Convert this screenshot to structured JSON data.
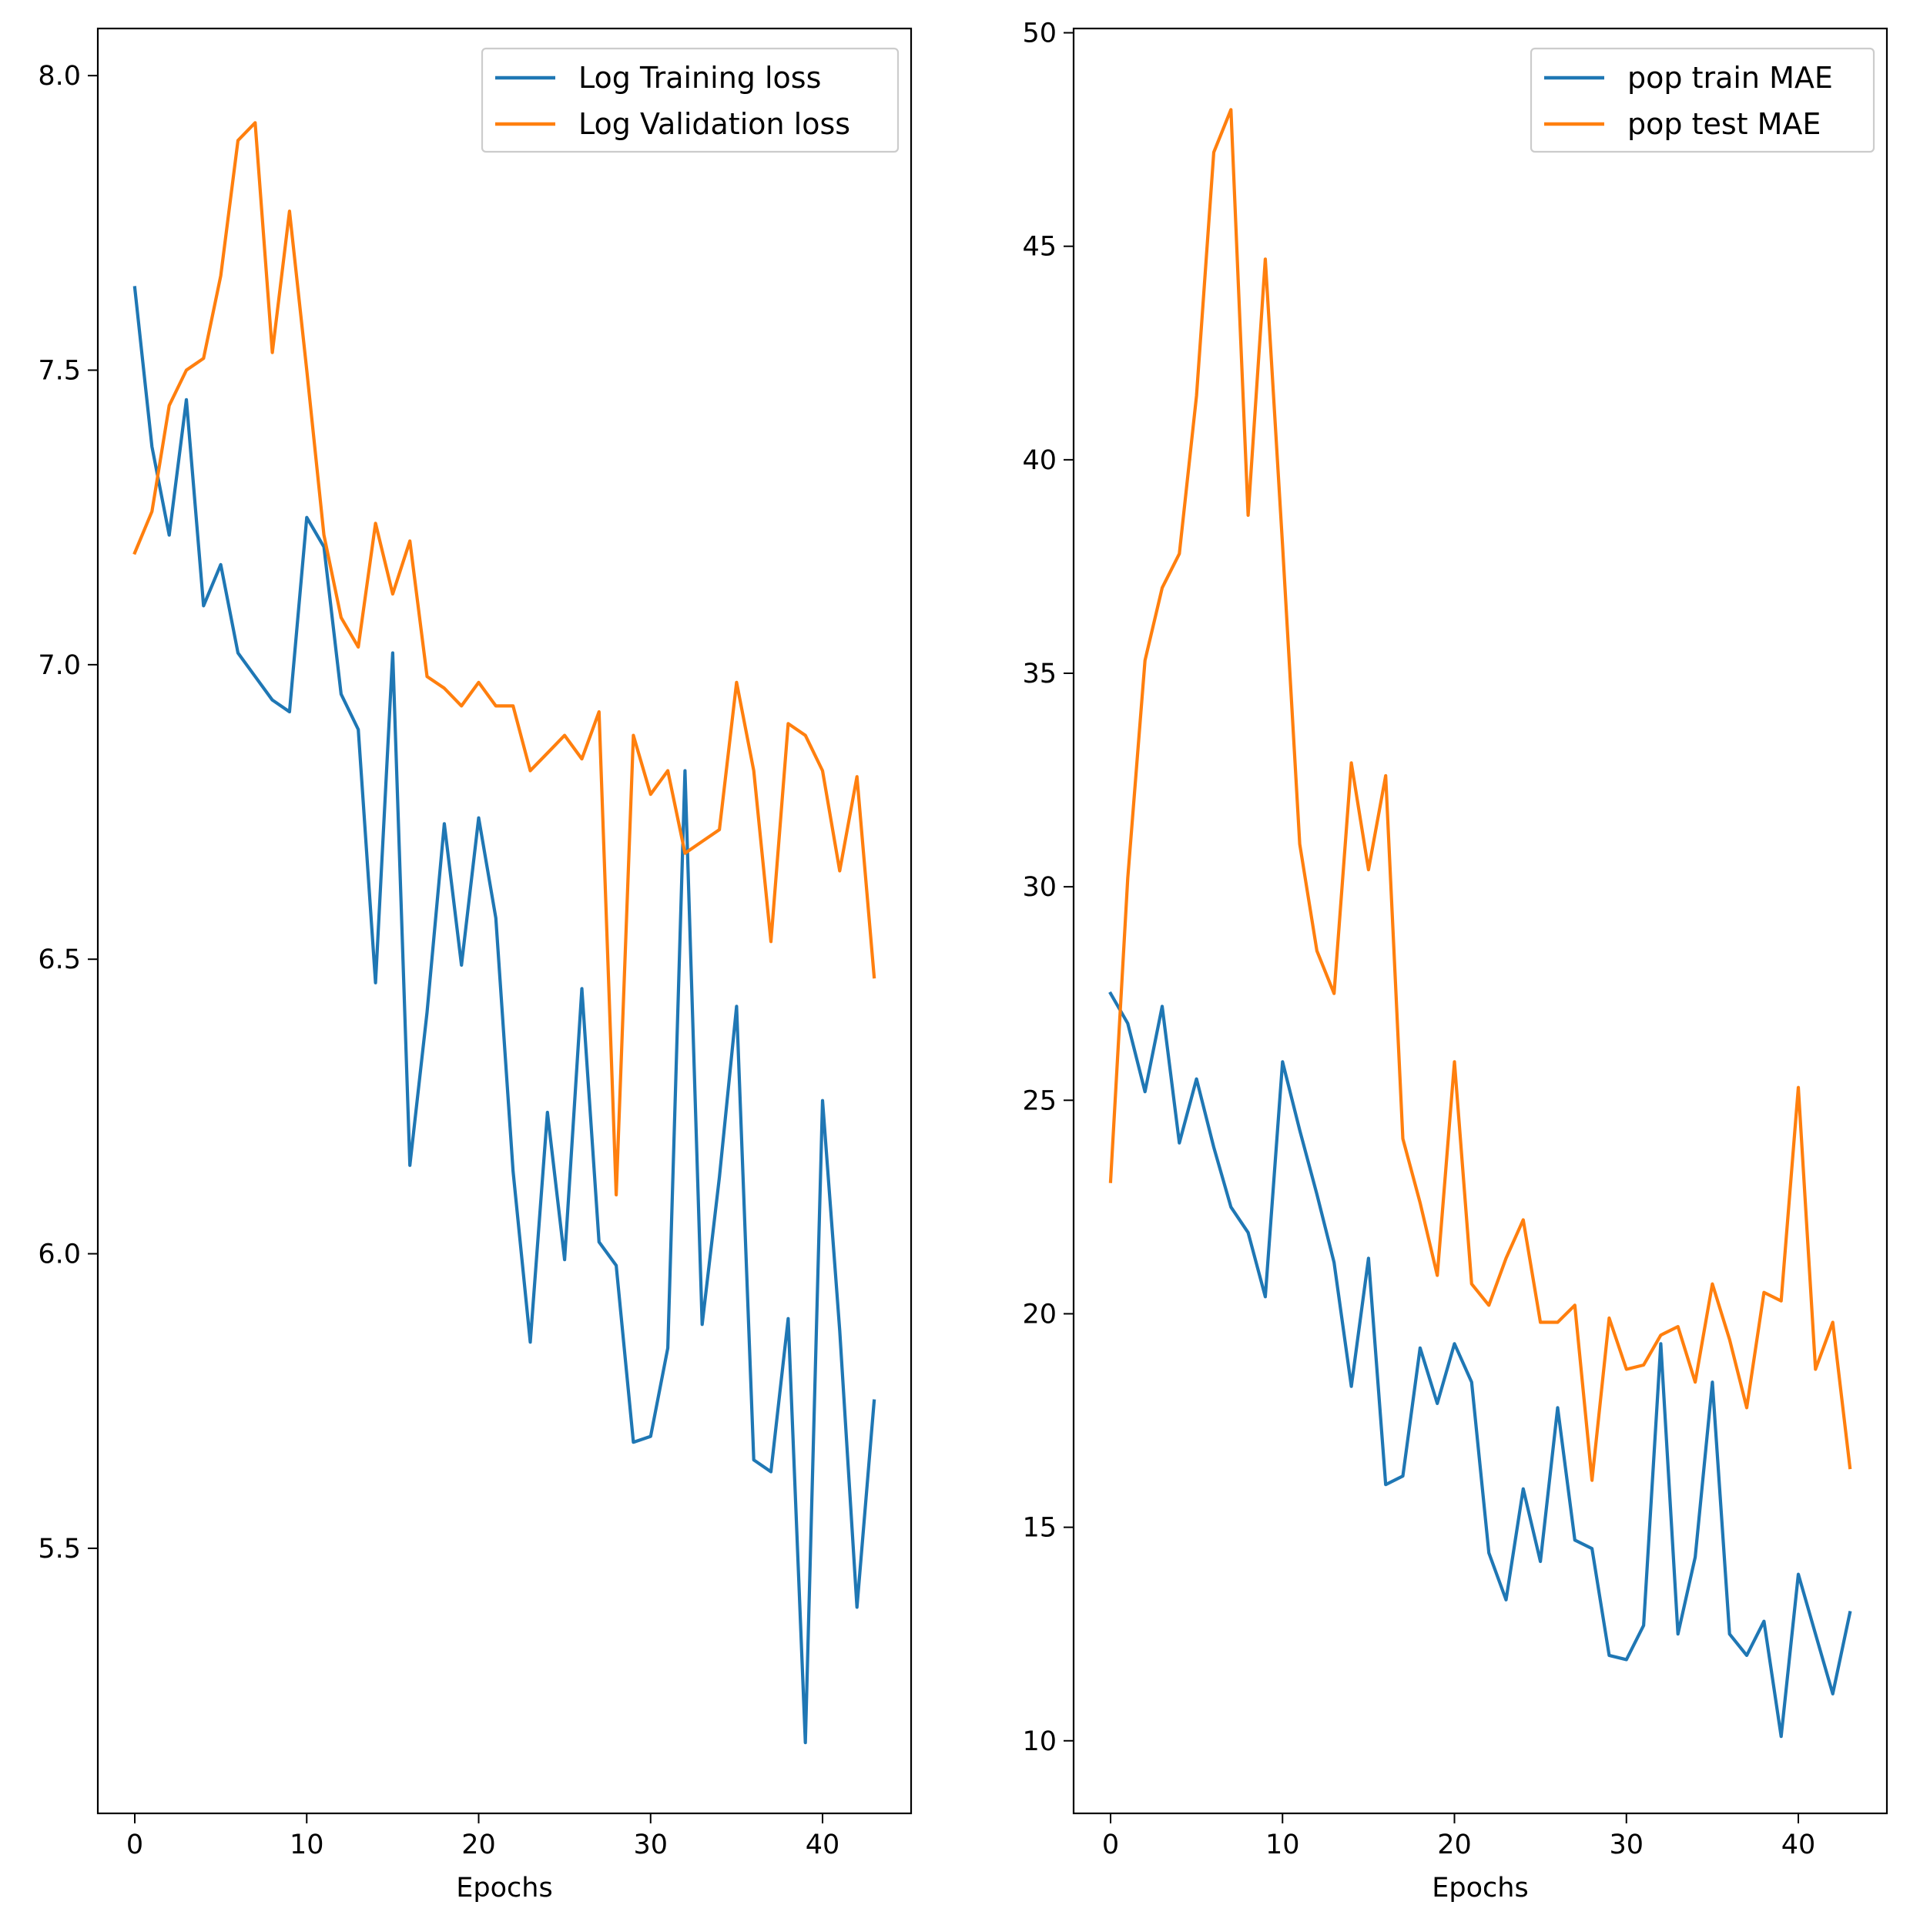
{
  "chart_data": [
    {
      "type": "line",
      "title": "",
      "xlabel": "Epochs",
      "ylabel": "",
      "xlim": [
        -2.15,
        45.15
      ],
      "ylim": [
        5.05,
        8.08
      ],
      "xticks": [
        0,
        10,
        20,
        30,
        40
      ],
      "yticks": [
        5.5,
        6.0,
        6.5,
        7.0,
        7.5,
        8.0
      ],
      "ytick_labels": [
        "5.5",
        "6.0",
        "6.5",
        "7.0",
        "7.5",
        "8.0"
      ],
      "grid": false,
      "legend_position": "top-right",
      "x": [
        0,
        1,
        2,
        3,
        4,
        5,
        6,
        7,
        8,
        9,
        10,
        11,
        12,
        13,
        14,
        15,
        16,
        17,
        18,
        19,
        20,
        21,
        22,
        23,
        24,
        25,
        26,
        27,
        28,
        29,
        30,
        31,
        32,
        33,
        34,
        35,
        36,
        37,
        38,
        39,
        40,
        41,
        42,
        43
      ],
      "series": [
        {
          "name": "Log Training loss",
          "color": "#1f77b4",
          "values": [
            7.64,
            7.37,
            7.22,
            7.45,
            7.1,
            7.17,
            7.02,
            6.98,
            6.94,
            6.92,
            7.25,
            7.2,
            6.95,
            6.89,
            6.46,
            7.02,
            6.15,
            6.41,
            6.73,
            6.49,
            6.74,
            6.57,
            6.14,
            5.85,
            6.24,
            5.99,
            6.45,
            6.02,
            5.98,
            5.68,
            5.69,
            5.84,
            6.82,
            5.88,
            6.13,
            6.42,
            5.65,
            5.63,
            5.89,
            5.17,
            6.26,
            5.87,
            5.4,
            5.75
          ]
        },
        {
          "name": "Log Validation loss",
          "color": "#ff7f0e",
          "values": [
            7.19,
            7.26,
            7.44,
            7.5,
            7.52,
            7.66,
            7.89,
            7.92,
            7.53,
            7.77,
            7.5,
            7.22,
            7.08,
            7.03,
            7.24,
            7.12,
            7.21,
            6.98,
            6.96,
            6.93,
            6.97,
            6.93,
            6.93,
            6.82,
            6.85,
            6.88,
            6.84,
            6.92,
            6.1,
            6.88,
            6.78,
            6.82,
            6.68,
            6.7,
            6.72,
            6.97,
            6.82,
            6.53,
            6.9,
            6.88,
            6.82,
            6.65,
            6.81,
            6.47
          ]
        }
      ]
    },
    {
      "type": "line",
      "title": "",
      "xlabel": "Epochs",
      "ylabel": "",
      "xlim": [
        -2.15,
        45.15
      ],
      "ylim": [
        8.3,
        50.1
      ],
      "xticks": [
        0,
        10,
        20,
        30,
        40
      ],
      "yticks": [
        10,
        15,
        20,
        25,
        30,
        35,
        40,
        45,
        50
      ],
      "ytick_labels": [
        "10",
        "15",
        "20",
        "25",
        "30",
        "35",
        "40",
        "45",
        "50"
      ],
      "grid": false,
      "legend_position": "top-right",
      "x": [
        0,
        1,
        2,
        3,
        4,
        5,
        6,
        7,
        8,
        9,
        10,
        11,
        12,
        13,
        14,
        15,
        16,
        17,
        18,
        19,
        20,
        21,
        22,
        23,
        24,
        25,
        26,
        27,
        28,
        29,
        30,
        31,
        32,
        33,
        34,
        35,
        36,
        37,
        38,
        39,
        40,
        41,
        42,
        43
      ],
      "series": [
        {
          "name": "pop train MAE",
          "color": "#1f77b4",
          "values": [
            27.5,
            26.8,
            25.2,
            27.2,
            24.0,
            25.5,
            23.9,
            22.5,
            21.9,
            20.4,
            25.9,
            24.3,
            22.8,
            21.2,
            18.3,
            21.3,
            16.0,
            16.2,
            19.2,
            17.9,
            19.3,
            18.4,
            14.4,
            13.3,
            15.9,
            14.2,
            17.8,
            14.7,
            14.5,
            12.0,
            11.9,
            12.7,
            19.3,
            12.5,
            14.3,
            18.4,
            12.5,
            12.0,
            12.8,
            10.1,
            13.9,
            12.5,
            11.1,
            13.0
          ]
        },
        {
          "name": "pop test MAE",
          "color": "#ff7f0e",
          "values": [
            23.1,
            30.2,
            35.3,
            37.0,
            37.8,
            41.5,
            47.2,
            48.2,
            38.7,
            44.7,
            38.0,
            31.0,
            28.5,
            27.5,
            32.9,
            30.4,
            32.6,
            24.1,
            22.6,
            20.9,
            25.9,
            20.7,
            20.2,
            21.3,
            22.2,
            19.8,
            19.8,
            20.2,
            16.1,
            19.9,
            18.7,
            18.8,
            19.5,
            19.7,
            18.4,
            20.7,
            19.4,
            17.8,
            20.5,
            20.3,
            25.3,
            18.7,
            19.8,
            16.4
          ]
        }
      ]
    }
  ]
}
